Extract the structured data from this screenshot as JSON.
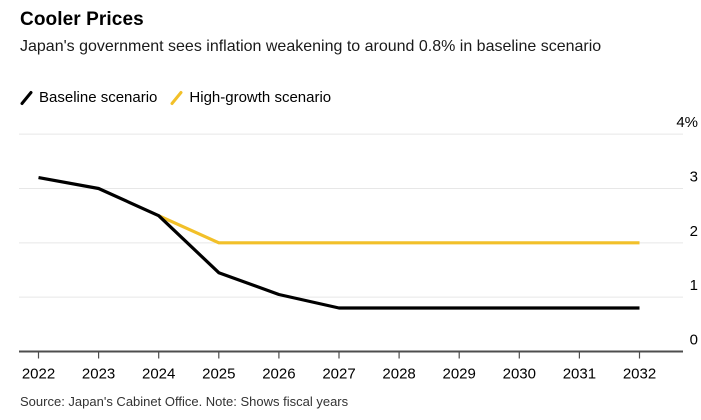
{
  "header": {
    "title": "Cooler Prices",
    "subtitle": "Japan's government sees inflation weakening to around 0.8% in baseline scenario"
  },
  "legend": [
    {
      "label": "Baseline scenario",
      "color": "#000000"
    },
    {
      "label": "High-growth scenario",
      "color": "#F2C029"
    }
  ],
  "chart_data": {
    "type": "line",
    "title": "Cooler Prices",
    "subtitle": "Japan's government sees inflation weakening to around 0.8% in baseline scenario",
    "x": [
      2022,
      2023,
      2024,
      2025,
      2026,
      2027,
      2028,
      2029,
      2030,
      2031,
      2032
    ],
    "x_tick_labels": [
      "2022",
      "2023",
      "2024",
      "2025",
      "2026",
      "2027",
      "2028",
      "2029",
      "2030",
      "2031",
      "2032"
    ],
    "series": [
      {
        "name": "Baseline scenario",
        "color": "#000000",
        "values": [
          3.2,
          3.0,
          2.5,
          1.45,
          1.05,
          0.8,
          0.8,
          0.8,
          0.8,
          0.8,
          0.8
        ]
      },
      {
        "name": "High-growth scenario",
        "color": "#F2C029",
        "values": [
          null,
          null,
          2.5,
          2.0,
          2.0,
          2.0,
          2.0,
          2.0,
          2.0,
          2.0,
          2.0
        ]
      }
    ],
    "y_ticks": [
      4,
      3,
      2,
      1,
      0
    ],
    "y_tick_labels": [
      "4%",
      "3",
      "2",
      "1",
      "0"
    ],
    "ylim": [
      0,
      4
    ],
    "xlabel": "",
    "ylabel": "",
    "grid": true,
    "legend_position": "top-left",
    "note": "Shows fiscal years"
  },
  "colors": {
    "gridline": "#E7E7E7",
    "axis": "#4D4D4D",
    "tick_label": "#000000",
    "background": "#FFFFFF"
  },
  "footer": {
    "source_note": "Source: Japan's Cabinet Office. Note: Shows fiscal years"
  }
}
